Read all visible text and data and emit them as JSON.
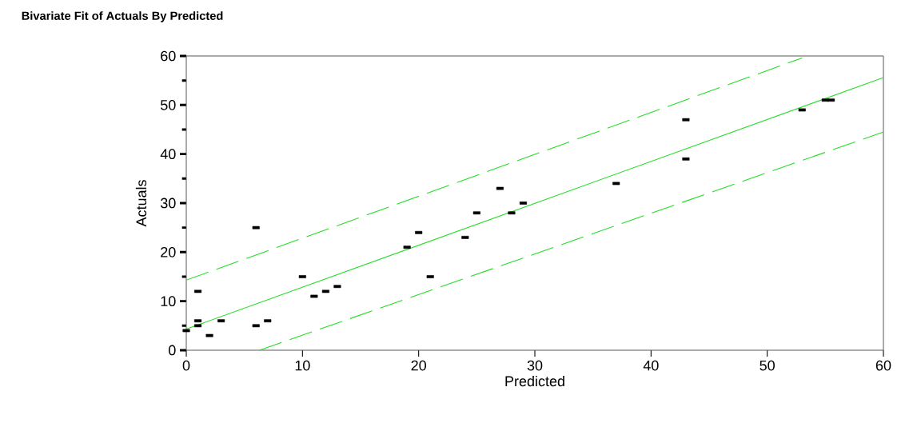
{
  "chart_data": {
    "type": "scatter",
    "title": "Bivariate Fit of Actuals By Predicted",
    "xlabel": "Predicted",
    "ylabel": "Actuals",
    "series": [
      {
        "color": "#000000",
        "marker": "square",
        "x": [
          0,
          1,
          1,
          1,
          2,
          3,
          6,
          6,
          7,
          10,
          11,
          12,
          13,
          19,
          20,
          21,
          24,
          25,
          27,
          28,
          29,
          37,
          43,
          43,
          53,
          55,
          55.5
        ],
        "values": [
          4,
          12,
          6,
          5,
          3,
          6,
          25,
          5,
          6,
          15,
          11,
          12,
          13,
          21,
          24,
          15,
          23,
          28,
          33,
          28,
          30,
          34,
          47,
          39,
          49,
          51,
          51
        ]
      },
      {
        "type": "line",
        "color": "#22dd22",
        "line_style": "solid",
        "x": [
          0,
          60
        ],
        "values": [
          4.3,
          55.6
        ]
      },
      {
        "type": "line",
        "color": "#22dd22",
        "line_style": "dashed",
        "x": [
          0,
          53
        ],
        "values": [
          14.3,
          59.6
        ]
      },
      {
        "type": "line",
        "color": "#22dd22",
        "line_style": "dashed",
        "x": [
          6.3,
          60
        ],
        "values": [
          0,
          44.5
        ]
      }
    ],
    "xlim": [
      0,
      60
    ],
    "ylim": [
      0,
      60
    ],
    "xticks": [
      0,
      10,
      20,
      30,
      40,
      50,
      60
    ],
    "yticks": [
      0,
      10,
      20,
      30,
      40,
      50,
      60
    ],
    "grid": false
  }
}
